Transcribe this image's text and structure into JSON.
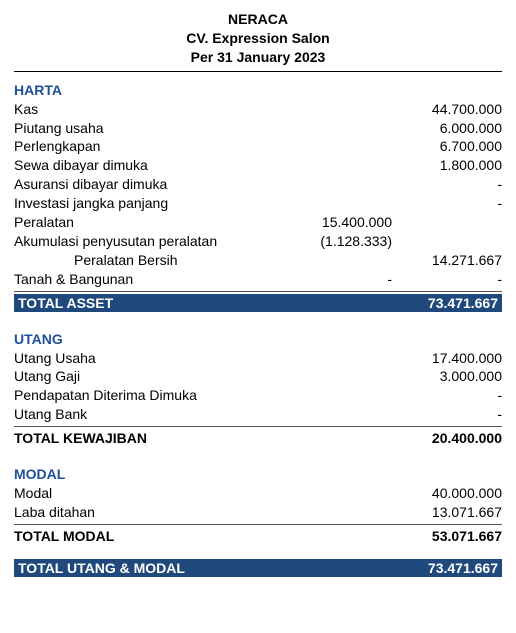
{
  "colors": {
    "accent": "#1f4e9c",
    "bar_bg": "#1f497d",
    "bar_fg": "#ffffff"
  },
  "header": {
    "title": "NERACA",
    "company": "CV. Expression Salon",
    "period": "Per 31 January 2023"
  },
  "harta": {
    "title": "HARTA",
    "rows": [
      {
        "label": "Kas",
        "value": "44.700.000"
      },
      {
        "label": "Piutang usaha",
        "value": "6.000.000"
      },
      {
        "label": "Perlengkapan",
        "value": "6.700.000"
      },
      {
        "label": "Sewa dibayar dimuka",
        "value": "1.800.000"
      },
      {
        "label": "Asuransi dibayar dimuka",
        "value": "-"
      },
      {
        "label": "Investasi jangka panjang",
        "value": "-"
      }
    ],
    "peralatan": {
      "label": "Peralatan",
      "mid": "15.400.000"
    },
    "akum": {
      "label": "Akumulasi penyusutan peralatan",
      "mid": "(1.128.333)"
    },
    "per_bersih": {
      "label": "Peralatan Bersih",
      "value": "14.271.667"
    },
    "tanah": {
      "label": "Tanah & Bangunan",
      "mid": "-",
      "value": "-"
    },
    "total": {
      "label": "TOTAL ASSET",
      "value": "73.471.667"
    }
  },
  "utang": {
    "title": "UTANG",
    "rows": [
      {
        "label": "Utang Usaha",
        "value": "17.400.000"
      },
      {
        "label": "Utang Gaji",
        "value": "3.000.000"
      },
      {
        "label": "Pendapatan Diterima Dimuka",
        "value": "-"
      },
      {
        "label": "Utang Bank",
        "value": "-"
      }
    ],
    "total": {
      "label": "TOTAL KEWAJIBAN",
      "value": "20.400.000"
    }
  },
  "modal": {
    "title": "MODAL",
    "rows": [
      {
        "label": "Modal",
        "value": "40.000.000"
      },
      {
        "label": "Laba ditahan",
        "value": "13.071.667"
      }
    ],
    "total": {
      "label": "TOTAL MODAL",
      "value": "53.071.667"
    }
  },
  "grand": {
    "label": "TOTAL UTANG & MODAL",
    "value": "73.471.667"
  }
}
